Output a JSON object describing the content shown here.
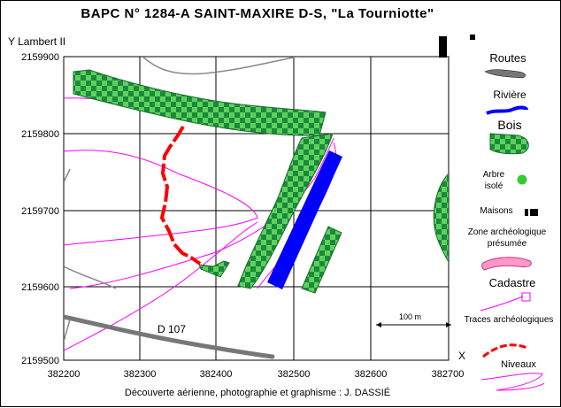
{
  "title": "BAPC N° 1284-A  SAINT-MAXIRE  D-S, \"La Tourniotte\"",
  "y_axis_label": "Y Lambert II",
  "x_axis_label": "X",
  "credit": "Découverte aérienne, photographie et graphisme : J. DASSIÉ",
  "x_ticks": [
    "382200",
    "382300",
    "382400",
    "382500",
    "382600",
    "382700"
  ],
  "y_ticks": [
    "2159900",
    "2159800",
    "2159700",
    "2159600",
    "2159500"
  ],
  "road_label": "D 107",
  "scale_label": "100 m",
  "legend": {
    "routes": "Routes",
    "riviere": "Rivière",
    "bois": "Bois",
    "arbre_line1": "Arbre",
    "arbre_line2": "isolé",
    "maisons": "Maisons",
    "zone_line1": "Zone archéologique",
    "zone_line2": "présumée",
    "cadastre": "Cadastre",
    "traces": "Traces archéologiques",
    "niveaux": "Niveaux"
  },
  "colors": {
    "bois": "#1a8a3a",
    "bois_dots": "#5fd05f",
    "river": "#0000ff",
    "road": "#777777",
    "traces": "#ff0000",
    "contour": "#ff00ff",
    "zone": "#ff99cc"
  }
}
